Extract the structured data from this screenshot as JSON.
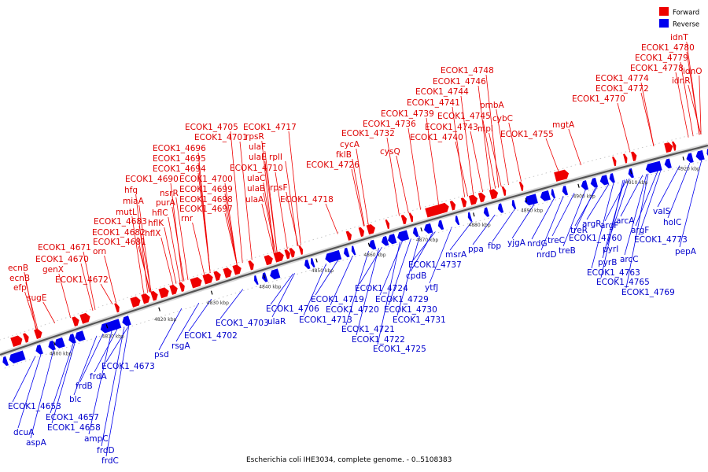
{
  "caption": "Escherichia coli IHE3034, complete genome. - 0..5108383",
  "legend": [
    {
      "label": "Forward",
      "color": "#ee0000"
    },
    {
      "label": "Reverse",
      "color": "#0000ee"
    }
  ],
  "colors": {
    "forward": "#ee0000",
    "reverse": "#0000ee",
    "forward_text": "#dd0000",
    "reverse_text": "#0000cc"
  },
  "scale": {
    "start_kbp": 4790,
    "end_kbp": 4925
  },
  "ticks": [
    {
      "kbp": 4800,
      "label": "4800 kbp"
    },
    {
      "kbp": 4810,
      "label": "4810 kbp"
    },
    {
      "kbp": 4820,
      "label": "4820 kbp"
    },
    {
      "kbp": 4830,
      "label": "4830 kbp"
    },
    {
      "kbp": 4840,
      "label": "4840 kbp"
    },
    {
      "kbp": 4850,
      "label": "4850 kbp"
    },
    {
      "kbp": 4860,
      "label": "4860 kbp"
    },
    {
      "kbp": 4870,
      "label": "4870 kbp"
    },
    {
      "kbp": 4880,
      "label": "4880 kbp"
    },
    {
      "kbp": 4890,
      "label": "4890 kbp"
    },
    {
      "kbp": 4900,
      "label": "4900 kbp"
    },
    {
      "kbp": 4910,
      "label": "4910 kbp"
    },
    {
      "kbp": 4920,
      "label": "4920 kbp"
    }
  ],
  "forward_labels": [
    "ecnB",
    "ecnB",
    "efp",
    "sugE",
    "ECOK1_4671",
    "ECOK1_4670",
    "genX",
    "ECOK1_4672",
    "orn",
    "ECOK1_4681",
    "ECOK1_4682",
    "ECOK1_4683",
    "mutL",
    "miaA",
    "hfq",
    "ECOK1_4690",
    "hflX",
    "hflK",
    "hflC",
    "purA",
    "nsrR",
    "rnr",
    "ECOK1_4694",
    "ECOK1_4695",
    "ECOK1_4696",
    "ECOK1_4701",
    "ECOK1_4705",
    "ECOK1_4697",
    "ECOK1_4698",
    "ECOK1_4699",
    "ECOK1_4700",
    "ulaA",
    "ulaB",
    "ulaC",
    "ECOK1_4710",
    "ulaE",
    "ulaF",
    "rpsF",
    "rplI",
    "rpsR",
    "ECOK1_4717",
    "ECOK1_4718",
    "ECOK1_4726",
    "fklB",
    "cycA",
    "ECOK1_4732",
    "cysQ",
    "ECOK1_4736",
    "ECOK1_4739",
    "ECOK1_4740",
    "ECOK1_4741",
    "ECOK1_4744",
    "ECOK1_4746",
    "ECOK1_4748",
    "ECOK1_4745",
    "ECOK1_4743",
    "mpl",
    "cybC",
    "pmbA",
    "ECOK1_4755",
    "mgtA",
    "ECOK1_4770",
    "ECOK1_4772",
    "ECOK1_4774",
    "ECOK1_4778",
    "ECOK1_4779",
    "ECOK1_4780",
    "idnT",
    "idnO",
    "idnR"
  ],
  "reverse_labels": [
    "ECOK1_4653",
    "dcuA",
    "aspA",
    "ECOK1_4657",
    "ECOK1_4658",
    "blc",
    "ampC",
    "frdD",
    "frdC",
    "frdB",
    "frdA",
    "ECOK1_4673",
    "psd",
    "rsgA",
    "ECOK1_4702",
    "ECOK1_4703",
    "ECOK1_4706",
    "ulaR",
    "ECOK1_4713",
    "ECOK1_4719",
    "ECOK1_4720",
    "ECOK1_4721",
    "ECOK1_4722",
    "ECOK1_4724",
    "ECOK1_4725",
    "ECOK1_4729",
    "ECOK1_4730",
    "ECOK1_4731",
    "cpdB",
    "ytfJ",
    "ECOK1_4737",
    "msrA",
    "ppa",
    "fbp",
    "yjgA",
    "nrdG",
    "nrdD",
    "treC",
    "treB",
    "treR",
    "ECOK1_4760",
    "argR",
    "pyrI",
    "pyrB",
    "ECOK1_4763",
    "ECOK1_4765",
    "ECOK1_4769",
    "argF",
    "arcC",
    "arcA",
    "argF",
    "valS",
    "holC",
    "ECOK1_4773",
    "pepA"
  ]
}
